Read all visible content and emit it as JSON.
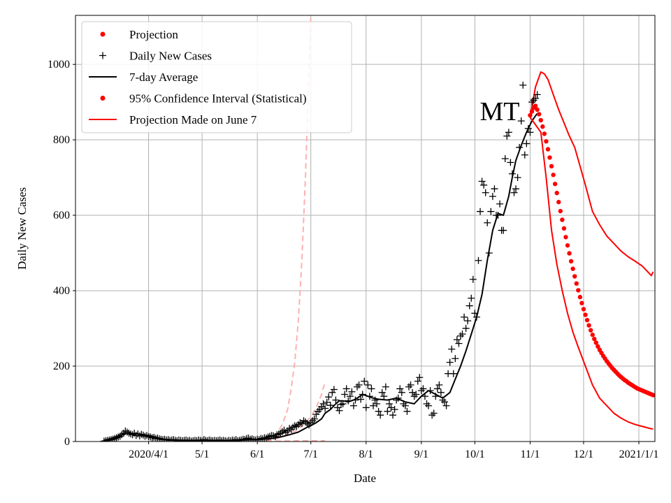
{
  "chart_data": {
    "type": "line",
    "state_label": "MT",
    "xlabel": "Date",
    "ylabel": "Daily New Cases",
    "x_unit": "days since 2020-01-01",
    "xlim": [
      50,
      375
    ],
    "ylim": [
      0,
      1130
    ],
    "grid": true,
    "legend_position": "top-left",
    "x_ticks": [
      {
        "value": 91,
        "label": "2020/4/1"
      },
      {
        "value": 121,
        "label": "5/1"
      },
      {
        "value": 152,
        "label": "6/1"
      },
      {
        "value": 182,
        "label": "7/1"
      },
      {
        "value": 213,
        "label": "8/1"
      },
      {
        "value": 244,
        "label": "9/1"
      },
      {
        "value": 274,
        "label": "10/1"
      },
      {
        "value": 305,
        "label": "11/1"
      },
      {
        "value": 335,
        "label": "12/1"
      },
      {
        "value": 366,
        "label": "2021/1/1"
      }
    ],
    "y_ticks": [
      {
        "value": 0,
        "label": "0"
      },
      {
        "value": 200,
        "label": "200"
      },
      {
        "value": 400,
        "label": "400"
      },
      {
        "value": 600,
        "label": "600"
      },
      {
        "value": 800,
        "label": "800"
      },
      {
        "value": 1000,
        "label": "1000"
      }
    ],
    "legend": [
      {
        "key": "projection",
        "label": "Projection",
        "style": "dot",
        "color": "#ff0000"
      },
      {
        "key": "daily",
        "label": "Daily New Cases",
        "style": "plus",
        "color": "#000000"
      },
      {
        "key": "avg",
        "label": "7-day Average",
        "style": "line",
        "color": "#000000"
      },
      {
        "key": "ci",
        "label": "95% Confidence Interval (Statistical)",
        "style": "dot",
        "color": "#ff0000"
      },
      {
        "key": "june",
        "label": "Projection Made on June 7",
        "style": "line",
        "color": "#ff0000"
      }
    ],
    "series": [
      {
        "name": "Daily New Cases",
        "style": "plus",
        "color": "#000000",
        "x": [
          66,
          67,
          68,
          69,
          70,
          71,
          72,
          73,
          74,
          75,
          76,
          77,
          78,
          79,
          80,
          81,
          82,
          83,
          84,
          85,
          86,
          87,
          88,
          89,
          90,
          91,
          92,
          93,
          94,
          95,
          96,
          97,
          98,
          99,
          100,
          101,
          102,
          103,
          104,
          105,
          106,
          107,
          108,
          109,
          110,
          111,
          112,
          113,
          114,
          115,
          116,
          117,
          118,
          119,
          120,
          121,
          122,
          123,
          124,
          125,
          126,
          127,
          128,
          129,
          130,
          131,
          132,
          133,
          134,
          135,
          136,
          137,
          138,
          139,
          140,
          141,
          142,
          143,
          144,
          145,
          146,
          147,
          148,
          149,
          150,
          151,
          152,
          153,
          154,
          155,
          156,
          157,
          158,
          159,
          160,
          161,
          162,
          163,
          164,
          165,
          166,
          167,
          168,
          169,
          170,
          171,
          172,
          173,
          174,
          175,
          176,
          177,
          178,
          179,
          180,
          181,
          182,
          183,
          184,
          185,
          186,
          187,
          188,
          189,
          190,
          191,
          192,
          193,
          194,
          195,
          196,
          197,
          198,
          199,
          200,
          201,
          202,
          203,
          204,
          205,
          206,
          207,
          208,
          209,
          210,
          211,
          212,
          213,
          214,
          215,
          216,
          217,
          218,
          219,
          220,
          221,
          222,
          223,
          224,
          225,
          226,
          227,
          228,
          229,
          230,
          231,
          232,
          233,
          234,
          235,
          236,
          237,
          238,
          239,
          240,
          241,
          242,
          243,
          244,
          245,
          246,
          247,
          248,
          249,
          250,
          251,
          252,
          253,
          254,
          255,
          256,
          257,
          258,
          259,
          260,
          261,
          262,
          263,
          264,
          265,
          266,
          267,
          268,
          269,
          270,
          271,
          272,
          273,
          274,
          275,
          276,
          277,
          278,
          279,
          280,
          281,
          282,
          283,
          284,
          285,
          286,
          287,
          288,
          289,
          290,
          291,
          292,
          293,
          294,
          295,
          296,
          297,
          298,
          299,
          300,
          301,
          302,
          303,
          304,
          305,
          306,
          307,
          308,
          309
        ],
        "y": [
          1,
          2,
          3,
          4,
          5,
          6,
          8,
          10,
          12,
          14,
          18,
          22,
          28,
          25,
          22,
          20,
          18,
          22,
          16,
          20,
          15,
          19,
          17,
          14,
          16,
          13,
          12,
          10,
          11,
          8,
          9,
          7,
          6,
          5,
          6,
          4,
          5,
          3,
          4,
          5,
          3,
          2,
          4,
          3,
          2,
          3,
          4,
          2,
          3,
          1,
          2,
          3,
          2,
          4,
          3,
          2,
          5,
          3,
          2,
          4,
          3,
          2,
          3,
          2,
          3,
          4,
          2,
          3,
          2,
          1,
          3,
          2,
          4,
          3,
          5,
          2,
          3,
          4,
          6,
          5,
          8,
          9,
          6,
          7,
          5,
          4,
          6,
          5,
          8,
          7,
          10,
          9,
          12,
          14,
          16,
          15,
          13,
          18,
          20,
          22,
          26,
          30,
          24,
          28,
          35,
          32,
          38,
          42,
          40,
          45,
          50,
          48,
          55,
          52,
          48,
          44,
          50,
          55,
          60,
          72,
          80,
          85,
          92,
          100,
          88,
          104,
          118,
          96,
          130,
          138,
          110,
          90,
          82,
          98,
          100,
          125,
          140,
          108,
          120,
          132,
          95,
          110,
          145,
          150,
          112,
          125,
          160,
          90,
          150,
          120,
          140,
          95,
          110,
          100,
          80,
          70,
          130,
          120,
          145,
          80,
          100,
          90,
          70,
          85,
          110,
          115,
          140,
          130,
          100,
          95,
          80,
          145,
          150,
          130,
          120,
          125,
          160,
          170,
          135,
          140,
          120,
          100,
          95,
          135,
          70,
          75,
          120,
          140,
          150,
          130,
          110,
          105,
          95,
          180,
          210,
          245,
          180,
          220,
          270,
          260,
          280,
          285,
          330,
          300,
          320,
          360,
          380,
          430,
          340,
          330,
          480,
          610,
          690,
          680,
          660,
          580,
          500,
          610,
          650,
          670,
          600,
          600,
          630,
          560,
          560,
          750,
          810,
          820,
          740,
          710,
          660,
          670,
          700,
          780,
          850,
          945,
          760,
          790,
          830,
          820,
          900,
          905,
          910,
          920
        ]
      },
      {
        "name": "7-day Average",
        "style": "line",
        "color": "#000000",
        "x": [
          66,
          70,
          74,
          77,
          80,
          84,
          88,
          92,
          96,
          100,
          105,
          110,
          120,
          130,
          140,
          150,
          155,
          160,
          165,
          170,
          175,
          180,
          182,
          185,
          188,
          190,
          193,
          196,
          198,
          200,
          203,
          206,
          208,
          211,
          214,
          217,
          220,
          225,
          230,
          235,
          240,
          244,
          248,
          252,
          256,
          260,
          263,
          266,
          269,
          272,
          275,
          278,
          281,
          284,
          287,
          290,
          293,
          295,
          297,
          300,
          303,
          306,
          309
        ],
        "y": [
          3,
          8,
          15,
          20,
          22,
          21,
          18,
          15,
          10,
          6,
          4,
          3,
          3,
          3,
          3,
          5,
          6,
          8,
          12,
          18,
          25,
          38,
          42,
          50,
          60,
          75,
          85,
          100,
          108,
          108,
          105,
          110,
          115,
          125,
          120,
          115,
          112,
          110,
          115,
          105,
          100,
          120,
          135,
          125,
          115,
          130,
          165,
          200,
          240,
          285,
          330,
          390,
          480,
          560,
          605,
          600,
          650,
          700,
          745,
          785,
          820,
          850,
          870
        ]
      },
      {
        "name": "Projection",
        "style": "dot",
        "color": "#ff0000",
        "x": [
          305,
          306,
          307,
          308,
          309,
          310,
          311,
          312,
          313,
          314,
          315,
          316,
          317,
          318,
          319,
          320,
          321,
          322,
          323,
          324,
          325,
          326,
          327,
          328,
          329,
          330,
          331,
          332,
          333,
          334,
          335,
          336,
          337,
          338,
          339,
          340,
          341,
          342,
          343,
          344,
          345,
          346,
          347,
          348,
          349,
          350,
          351,
          352,
          353,
          354,
          355,
          356,
          357,
          358,
          359,
          360,
          361,
          362,
          363,
          364,
          365,
          366,
          367,
          368,
          369,
          370,
          371,
          372,
          373,
          374
        ],
        "y": [
          865,
          875,
          885,
          890,
          880,
          868,
          852,
          835,
          816,
          796,
          775,
          753,
          730,
          707,
          683,
          659,
          635,
          611,
          588,
          565,
          542,
          520,
          499,
          478,
          458,
          438,
          419,
          401,
          383,
          367,
          351,
          336,
          322,
          308,
          295,
          283,
          272,
          262,
          252,
          243,
          235,
          227,
          220,
          213,
          207,
          201,
          195,
          190,
          185,
          180,
          175,
          171,
          167,
          163,
          160,
          156,
          153,
          150,
          147,
          144,
          141,
          139,
          137,
          135,
          133,
          131,
          129,
          127,
          125,
          123
        ]
      },
      {
        "name": "95% Confidence Interval (Statistical) upper",
        "style": "line",
        "color": "#ff0000",
        "x": [
          305,
          308,
          311,
          313,
          315,
          318,
          321,
          324,
          327,
          330,
          333,
          336,
          340,
          344,
          348,
          352,
          356,
          360,
          364,
          368,
          372,
          373,
          374
        ],
        "y": [
          860,
          940,
          980,
          975,
          960,
          920,
          880,
          845,
          810,
          780,
          730,
          680,
          610,
          575,
          545,
          525,
          505,
          490,
          478,
          465,
          445,
          440,
          450
        ]
      },
      {
        "name": "95% Confidence Interval (Statistical) lower",
        "style": "line",
        "color": "#ff0000",
        "x": [
          305,
          308,
          311,
          314,
          317,
          320,
          323,
          326,
          329,
          332,
          336,
          340,
          344,
          348,
          352,
          356,
          360,
          364,
          368,
          372,
          374
        ],
        "y": [
          860,
          840,
          820,
          700,
          560,
          470,
          400,
          340,
          290,
          250,
          200,
          150,
          115,
          95,
          75,
          62,
          52,
          45,
          40,
          35,
          33
        ]
      },
      {
        "name": "Projection Made on June 7 (upper, faded)",
        "style": "dashed",
        "color": "#ffb0b0",
        "x": [
          157,
          160,
          163,
          166,
          169,
          171,
          173,
          175,
          177,
          179,
          180,
          181,
          182
        ],
        "y": [
          0,
          8,
          22,
          45,
          85,
          140,
          210,
          320,
          480,
          700,
          850,
          1000,
          1130
        ]
      },
      {
        "name": "Projection Made on June 7 (central, faded)",
        "style": "dashed",
        "color": "#ffb0b0",
        "x": [
          157,
          160,
          163,
          166,
          170,
          174,
          178,
          182,
          185,
          188,
          190
        ],
        "y": [
          0,
          4,
          8,
          13,
          20,
          30,
          45,
          65,
          90,
          125,
          158
        ]
      },
      {
        "name": "Projection Made on June 7 (lower, faded)",
        "style": "dashed",
        "color": "#ffb0b0",
        "x": [
          157,
          165,
          175,
          185,
          190
        ],
        "y": [
          1,
          1,
          2,
          2,
          2
        ]
      }
    ]
  }
}
